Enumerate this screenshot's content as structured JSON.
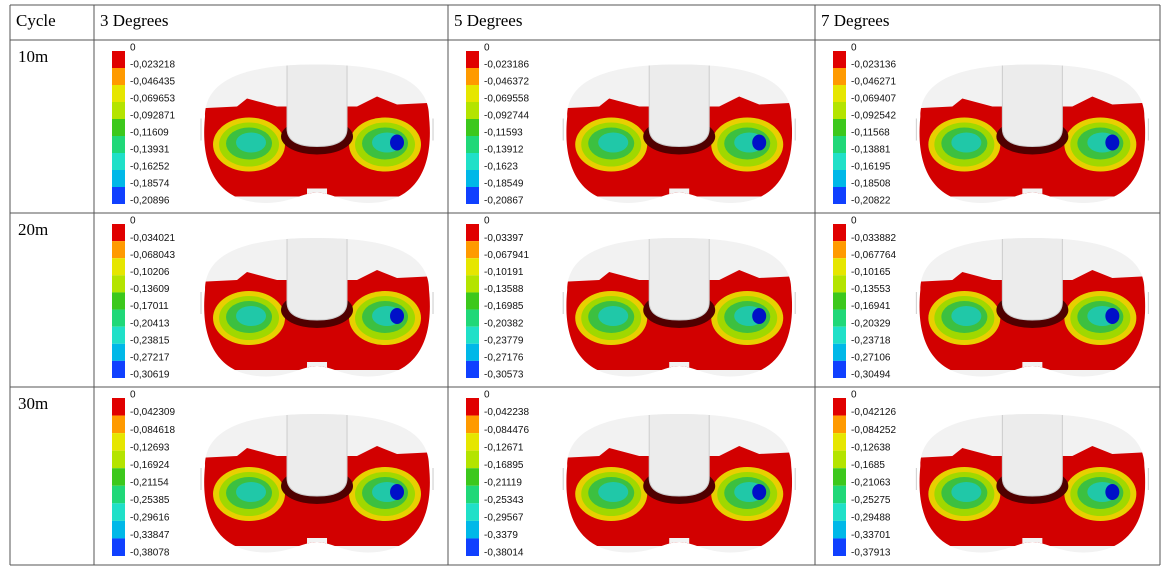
{
  "table": {
    "header": [
      "Cycle",
      "3 Degrees",
      "5 Degrees",
      "7 Degrees"
    ],
    "rows": [
      {
        "label": "10m",
        "legends": [
          [
            "0",
            "-0,023218",
            "-0,046435",
            "-0,069653",
            "-0,092871",
            "-0,11609",
            "-0,13931",
            "-0,16252",
            "-0,18574",
            "-0,20896"
          ],
          [
            "0",
            "-0,023186",
            "-0,046372",
            "-0,069558",
            "-0,092744",
            "-0,11593",
            "-0,13912",
            "-0,1623",
            "-0,18549",
            "-0,20867"
          ],
          [
            "0",
            "-0,023136",
            "-0,046271",
            "-0,069407",
            "-0,092542",
            "-0,11568",
            "-0,13881",
            "-0,16195",
            "-0,18508",
            "-0,20822"
          ]
        ]
      },
      {
        "label": "20m",
        "legends": [
          [
            "0",
            "-0,034021",
            "-0,068043",
            "-0,10206",
            "-0,13609",
            "-0,17011",
            "-0,20413",
            "-0,23815",
            "-0,27217",
            "-0,30619"
          ],
          [
            "0",
            "-0,03397",
            "-0,067941",
            "-0,10191",
            "-0,13588",
            "-0,16985",
            "-0,20382",
            "-0,23779",
            "-0,27176",
            "-0,30573"
          ],
          [
            "0",
            "-0,033882",
            "-0,067764",
            "-0,10165",
            "-0,13553",
            "-0,16941",
            "-0,20329",
            "-0,23718",
            "-0,27106",
            "-0,30494"
          ]
        ]
      },
      {
        "label": "30m",
        "legends": [
          [
            "0",
            "-0,042309",
            "-0,084618",
            "-0,12693",
            "-0,16924",
            "-0,21154",
            "-0,25385",
            "-0,29616",
            "-0,33847",
            "-0,38078"
          ],
          [
            "0",
            "-0,042238",
            "-0,084476",
            "-0,12671",
            "-0,16895",
            "-0,21119",
            "-0,25343",
            "-0,29567",
            "-0,3379",
            "-0,38014"
          ],
          [
            "0",
            "-0,042126",
            "-0,084252",
            "-0,12638",
            "-0,1685",
            "-0,21063",
            "-0,25275",
            "-0,29488",
            "-0,33701",
            "-0,37913"
          ]
        ]
      }
    ]
  }
}
